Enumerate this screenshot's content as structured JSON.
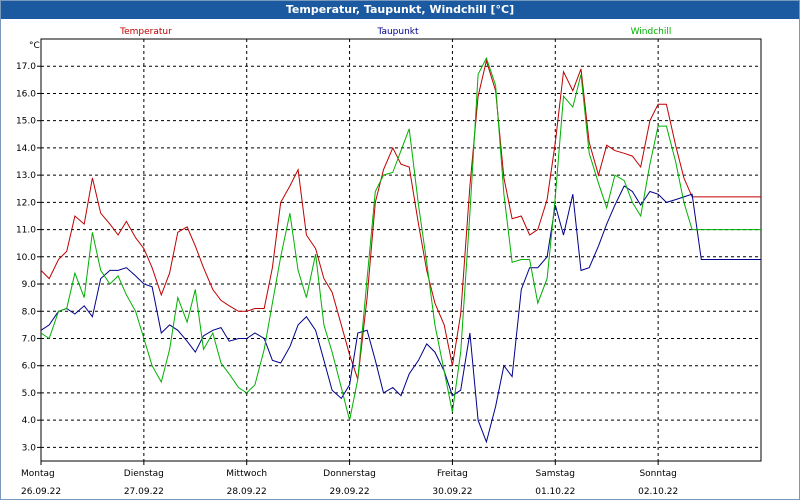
{
  "chart_data": {
    "type": "line",
    "title": "Temperatur, Taupunkt, Windchill [°C]",
    "ylabel": "°C",
    "ylim": [
      2.5,
      18.0
    ],
    "yticks": [
      "3.0",
      "4.0",
      "5.0",
      "6.0",
      "7.0",
      "8.0",
      "9.0",
      "10.0",
      "11.0",
      "12.0",
      "13.0",
      "14.0",
      "15.0",
      "16.0",
      "17.0"
    ],
    "xlim": [
      0,
      7
    ],
    "xticks": [
      {
        "day": "Montag",
        "date": "26.09.22"
      },
      {
        "day": "Dienstag",
        "date": "27.09.22"
      },
      {
        "day": "Mittwoch",
        "date": "28.09.22"
      },
      {
        "day": "Donnerstag",
        "date": "29.09.22"
      },
      {
        "day": "Freitag",
        "date": "30.09.22"
      },
      {
        "day": "Samstag",
        "date": "01.10.22"
      },
      {
        "day": "Sonntag",
        "date": "02.10.22"
      }
    ],
    "grid": true,
    "x": [
      0,
      0.08,
      0.17,
      0.25,
      0.33,
      0.42,
      0.5,
      0.58,
      0.67,
      0.75,
      0.83,
      0.92,
      1,
      1.08,
      1.17,
      1.25,
      1.33,
      1.42,
      1.5,
      1.58,
      1.67,
      1.75,
      1.83,
      1.92,
      2,
      2.08,
      2.17,
      2.25,
      2.33,
      2.42,
      2.5,
      2.58,
      2.67,
      2.75,
      2.83,
      2.92,
      3,
      3.08,
      3.17,
      3.25,
      3.33,
      3.42,
      3.5,
      3.58,
      3.67,
      3.75,
      3.83,
      3.92,
      4,
      4.08,
      4.17,
      4.25,
      4.33,
      4.42,
      4.5,
      4.58,
      4.67,
      4.75,
      4.83,
      4.92,
      5,
      5.08,
      5.17,
      5.25,
      5.33,
      5.42,
      5.5,
      5.58,
      5.67,
      5.75,
      5.83,
      5.92,
      6,
      6.08,
      6.17,
      6.25,
      6.33,
      6.42,
      6.5,
      6.58,
      6.67,
      6.75,
      6.83,
      6.92,
      7
    ],
    "series": [
      {
        "name": "Temperatur",
        "color": "#c00000",
        "values": [
          9.5,
          9.2,
          9.9,
          10.2,
          11.5,
          11.2,
          12.9,
          11.6,
          11.2,
          10.8,
          11.3,
          10.7,
          10.3,
          9.6,
          8.6,
          9.4,
          10.9,
          11.1,
          10.4,
          9.6,
          8.8,
          8.4,
          8.2,
          8.0,
          8.0,
          8.1,
          8.1,
          9.6,
          12.0,
          12.6,
          13.2,
          10.8,
          10.3,
          9.2,
          8.7,
          7.5,
          6.4,
          5.5,
          8.5,
          12.0,
          13.2,
          14.0,
          13.4,
          13.3,
          11.2,
          9.5,
          8.3,
          7.5,
          6.0,
          7.9,
          12.6,
          15.9,
          17.2,
          16.1,
          12.9,
          11.4,
          11.5,
          10.8,
          11.0,
          12.1,
          14.2,
          16.8,
          16.1,
          16.9,
          14.2,
          13.0,
          14.1,
          13.9,
          13.8,
          13.7,
          13.3,
          15.0,
          15.6,
          15.6,
          14.1,
          12.9,
          12.2,
          12.2,
          12.2,
          12.2,
          12.2,
          12.2,
          12.2,
          12.2,
          12.2
        ]
      },
      {
        "name": "Taupunkt",
        "color": "#00008b",
        "values": [
          7.3,
          7.5,
          8.0,
          8.1,
          7.9,
          8.2,
          7.8,
          9.2,
          9.5,
          9.5,
          9.6,
          9.3,
          9.0,
          8.9,
          7.2,
          7.5,
          7.3,
          6.9,
          6.5,
          7.1,
          7.3,
          7.4,
          6.9,
          7.0,
          7.0,
          7.2,
          7.0,
          6.2,
          6.1,
          6.7,
          7.5,
          7.8,
          7.3,
          6.2,
          5.1,
          4.8,
          5.3,
          7.2,
          7.3,
          6.2,
          5.0,
          5.2,
          4.9,
          5.7,
          6.2,
          6.8,
          6.5,
          5.8,
          4.9,
          5.1,
          7.2,
          4.0,
          3.2,
          4.5,
          6.0,
          5.6,
          8.8,
          9.6,
          9.6,
          10.0,
          11.9,
          10.8,
          12.3,
          9.5,
          9.6,
          10.4,
          11.2,
          11.9,
          12.6,
          12.4,
          11.9,
          12.4,
          12.3,
          12.0,
          12.1,
          12.2,
          12.3,
          9.9,
          9.9,
          9.9,
          9.9,
          9.9,
          9.9,
          9.9,
          9.9
        ]
      },
      {
        "name": "Windchill",
        "color": "#00b000",
        "values": [
          7.2,
          7.0,
          8.0,
          8.1,
          9.4,
          8.5,
          10.9,
          9.5,
          9.0,
          9.3,
          8.6,
          8.0,
          7.0,
          6.0,
          5.4,
          6.6,
          8.5,
          7.6,
          8.8,
          6.6,
          7.2,
          6.1,
          5.7,
          5.2,
          5.0,
          5.3,
          6.6,
          8.3,
          10.0,
          11.6,
          9.5,
          8.5,
          10.1,
          7.5,
          6.5,
          5.2,
          4.0,
          5.5,
          9.2,
          12.4,
          13.0,
          13.1,
          13.9,
          14.7,
          11.9,
          9.8,
          7.5,
          5.8,
          4.3,
          6.5,
          11.6,
          16.7,
          17.3,
          16.3,
          12.3,
          9.8,
          9.9,
          9.9,
          8.3,
          9.2,
          12.2,
          15.9,
          15.5,
          16.7,
          13.8,
          12.7,
          11.8,
          13.0,
          12.8,
          12.0,
          11.5,
          13.4,
          14.8,
          14.8,
          13.5,
          12.0,
          11.0,
          11.0,
          11.0,
          11.0,
          11.0,
          11.0,
          11.0,
          11.0,
          11.0
        ]
      }
    ],
    "x_end_data": 6.98
  }
}
